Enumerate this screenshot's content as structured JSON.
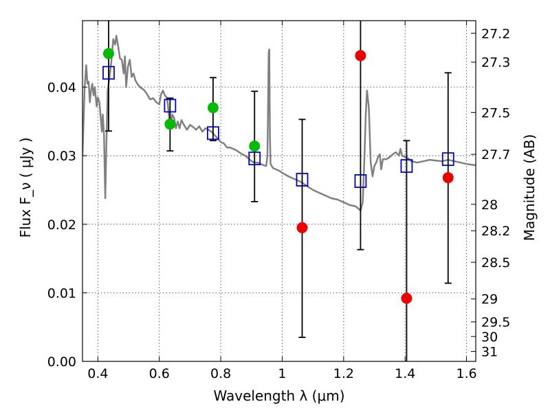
{
  "chart_data": {
    "type": "scatter",
    "xlabel": "Wavelength  λ (μm)",
    "ylabel": "Flux  F_ν  ( μJy )",
    "y2label": "Magnitude (AB)",
    "xlim": [
      0.35,
      1.63
    ],
    "ylim": [
      0.0,
      0.0497
    ],
    "x_ticks": [
      0.4,
      0.6,
      0.8,
      1.0,
      1.2,
      1.4,
      1.6
    ],
    "x_tick_labels": [
      "0.4",
      "0.6",
      "0.8",
      "1",
      "1.2",
      "1.4",
      "1.6"
    ],
    "y_ticks": [
      0.0,
      0.01,
      0.02,
      0.03,
      0.04
    ],
    "y_tick_labels": [
      "0.00",
      "0.01",
      "0.02",
      "0.03",
      "0.04"
    ],
    "y2_ticks": [
      27.2,
      27.3,
      27.5,
      27.7,
      28,
      28.2,
      28.5,
      29,
      29.5,
      30,
      31
    ],
    "y2_tick_labels": [
      "27.2",
      "27.3",
      "27.5",
      "27.7",
      "28",
      "28.2",
      "28.5",
      "29",
      "29.5",
      "30",
      "31"
    ],
    "grid": true,
    "series": [
      {
        "kind": "line",
        "color": "#808080",
        "points": [
          [
            0.35,
            0.03
          ],
          [
            0.357,
            0.04
          ],
          [
            0.362,
            0.0432
          ],
          [
            0.366,
            0.0405
          ],
          [
            0.37,
            0.0408
          ],
          [
            0.374,
            0.0378
          ],
          [
            0.378,
            0.0396
          ],
          [
            0.382,
            0.0405
          ],
          [
            0.386,
            0.0388
          ],
          [
            0.39,
            0.04
          ],
          [
            0.396,
            0.0372
          ],
          [
            0.4,
            0.0385
          ],
          [
            0.405,
            0.0378
          ],
          [
            0.41,
            0.0352
          ],
          [
            0.413,
            0.0335
          ],
          [
            0.416,
            0.036
          ],
          [
            0.42,
            0.033
          ],
          [
            0.424,
            0.0238
          ],
          [
            0.428,
            0.0322
          ],
          [
            0.432,
            0.0395
          ],
          [
            0.438,
            0.0415
          ],
          [
            0.444,
            0.0438
          ],
          [
            0.45,
            0.047
          ],
          [
            0.456,
            0.0462
          ],
          [
            0.46,
            0.0475
          ],
          [
            0.466,
            0.046
          ],
          [
            0.472,
            0.0442
          ],
          [
            0.478,
            0.044
          ],
          [
            0.484,
            0.042
          ],
          [
            0.488,
            0.0445
          ],
          [
            0.492,
            0.04
          ],
          [
            0.498,
            0.043
          ],
          [
            0.504,
            0.044
          ],
          [
            0.51,
            0.0415
          ],
          [
            0.516,
            0.042
          ],
          [
            0.522,
            0.041
          ],
          [
            0.53,
            0.0404
          ],
          [
            0.54,
            0.0399
          ],
          [
            0.55,
            0.0396
          ],
          [
            0.56,
            0.039
          ],
          [
            0.57,
            0.0382
          ],
          [
            0.58,
            0.0384
          ],
          [
            0.59,
            0.0378
          ],
          [
            0.6,
            0.0375
          ],
          [
            0.606,
            0.039
          ],
          [
            0.612,
            0.0395
          ],
          [
            0.618,
            0.0388
          ],
          [
            0.624,
            0.0385
          ],
          [
            0.628,
            0.0375
          ],
          [
            0.632,
            0.0355
          ],
          [
            0.636,
            0.034
          ],
          [
            0.642,
            0.036
          ],
          [
            0.648,
            0.0355
          ],
          [
            0.654,
            0.034
          ],
          [
            0.66,
            0.035
          ],
          [
            0.666,
            0.034
          ],
          [
            0.672,
            0.0352
          ],
          [
            0.68,
            0.0345
          ],
          [
            0.69,
            0.0338
          ],
          [
            0.7,
            0.0345
          ],
          [
            0.71,
            0.0342
          ],
          [
            0.72,
            0.0338
          ],
          [
            0.73,
            0.0343
          ],
          [
            0.74,
            0.0335
          ],
          [
            0.75,
            0.034
          ],
          [
            0.76,
            0.0338
          ],
          [
            0.77,
            0.0335
          ],
          [
            0.78,
            0.033
          ],
          [
            0.79,
            0.0325
          ],
          [
            0.8,
            0.032
          ],
          [
            0.81,
            0.0318
          ],
          [
            0.82,
            0.0312
          ],
          [
            0.83,
            0.0312
          ],
          [
            0.84,
            0.031
          ],
          [
            0.85,
            0.0308
          ],
          [
            0.86,
            0.0305
          ],
          [
            0.87,
            0.0302
          ],
          [
            0.88,
            0.03
          ],
          [
            0.89,
            0.0296
          ],
          [
            0.9,
            0.0292
          ],
          [
            0.91,
            0.029
          ],
          [
            0.92,
            0.029
          ],
          [
            0.93,
            0.0288
          ],
          [
            0.94,
            0.0286
          ],
          [
            0.948,
            0.0285
          ],
          [
            0.952,
            0.03
          ],
          [
            0.954,
            0.037
          ],
          [
            0.956,
            0.045
          ],
          [
            0.958,
            0.0455
          ],
          [
            0.96,
            0.033
          ],
          [
            0.962,
            0.0288
          ],
          [
            0.97,
            0.0282
          ],
          [
            0.98,
            0.028
          ],
          [
            0.99,
            0.0278
          ],
          [
            1.0,
            0.0275
          ],
          [
            1.02,
            0.027
          ],
          [
            1.04,
            0.0266
          ],
          [
            1.06,
            0.0262
          ],
          [
            1.08,
            0.0256
          ],
          [
            1.1,
            0.025
          ],
          [
            1.12,
            0.0246
          ],
          [
            1.14,
            0.0242
          ],
          [
            1.16,
            0.0238
          ],
          [
            1.18,
            0.0236
          ],
          [
            1.2,
            0.0232
          ],
          [
            1.22,
            0.0228
          ],
          [
            1.24,
            0.0226
          ],
          [
            1.255,
            0.022
          ],
          [
            1.262,
            0.0232
          ],
          [
            1.268,
            0.03
          ],
          [
            1.272,
            0.036
          ],
          [
            1.276,
            0.0395
          ],
          [
            1.282,
            0.037
          ],
          [
            1.288,
            0.029
          ],
          [
            1.294,
            0.027
          ],
          [
            1.3,
            0.0285
          ],
          [
            1.306,
            0.029
          ],
          [
            1.312,
            0.0298
          ],
          [
            1.318,
            0.0302
          ],
          [
            1.322,
            0.028
          ],
          [
            1.328,
            0.0295
          ],
          [
            1.34,
            0.0295
          ],
          [
            1.35,
            0.0298
          ],
          [
            1.36,
            0.0302
          ],
          [
            1.37,
            0.0305
          ],
          [
            1.38,
            0.03
          ],
          [
            1.385,
            0.031
          ],
          [
            1.39,
            0.03
          ],
          [
            1.4,
            0.0298
          ],
          [
            1.41,
            0.0296
          ],
          [
            1.42,
            0.0292
          ],
          [
            1.44,
            0.029
          ],
          [
            1.46,
            0.0292
          ],
          [
            1.48,
            0.0294
          ],
          [
            1.5,
            0.0293
          ],
          [
            1.52,
            0.0292
          ],
          [
            1.54,
            0.0294
          ],
          [
            1.56,
            0.0292
          ],
          [
            1.58,
            0.029
          ],
          [
            1.6,
            0.0288
          ],
          [
            1.63,
            0.0286
          ]
        ]
      },
      {
        "kind": "open-square",
        "color": "#0000cc",
        "points": [
          [
            0.435,
            0.0421
          ],
          [
            0.635,
            0.0373
          ],
          [
            0.775,
            0.0333
          ],
          [
            0.91,
            0.0296
          ],
          [
            1.065,
            0.0265
          ],
          [
            1.255,
            0.0263
          ],
          [
            1.405,
            0.0285
          ],
          [
            1.54,
            0.0295
          ]
        ]
      },
      {
        "kind": "filled-circle",
        "color": "#00bb00",
        "points": [
          [
            0.435,
            0.0449
          ],
          [
            0.635,
            0.0346
          ],
          [
            0.775,
            0.037
          ],
          [
            0.91,
            0.0314
          ]
        ]
      },
      {
        "kind": "filled-circle",
        "color": "#ee0000",
        "points": [
          [
            1.065,
            0.0195
          ],
          [
            1.255,
            0.0446
          ],
          [
            1.405,
            0.0092
          ],
          [
            1.54,
            0.0268
          ]
        ]
      },
      {
        "kind": "errorbar",
        "color": "#000000",
        "bars": [
          {
            "x": 0.435,
            "low": 0.0336,
            "high": 0.0497,
            "cap_low": true,
            "cap_high": false
          },
          {
            "x": 0.635,
            "low": 0.0307,
            "high": 0.0384,
            "cap_low": true,
            "cap_high": true
          },
          {
            "x": 0.775,
            "low": 0.0322,
            "high": 0.0414,
            "cap_low": true,
            "cap_high": true
          },
          {
            "x": 0.91,
            "low": 0.0233,
            "high": 0.0394,
            "cap_low": true,
            "cap_high": true
          },
          {
            "x": 1.065,
            "low": 0.0035,
            "high": 0.0353,
            "cap_low": true,
            "cap_high": true
          },
          {
            "x": 1.255,
            "low": 0.0163,
            "high": 0.0497,
            "cap_low": true,
            "cap_high": false
          },
          {
            "x": 1.405,
            "low": 0.0,
            "high": 0.0322,
            "cap_low": false,
            "cap_high": true
          },
          {
            "x": 1.54,
            "low": 0.0114,
            "high": 0.0421,
            "cap_low": true,
            "cap_high": true
          }
        ]
      }
    ]
  }
}
